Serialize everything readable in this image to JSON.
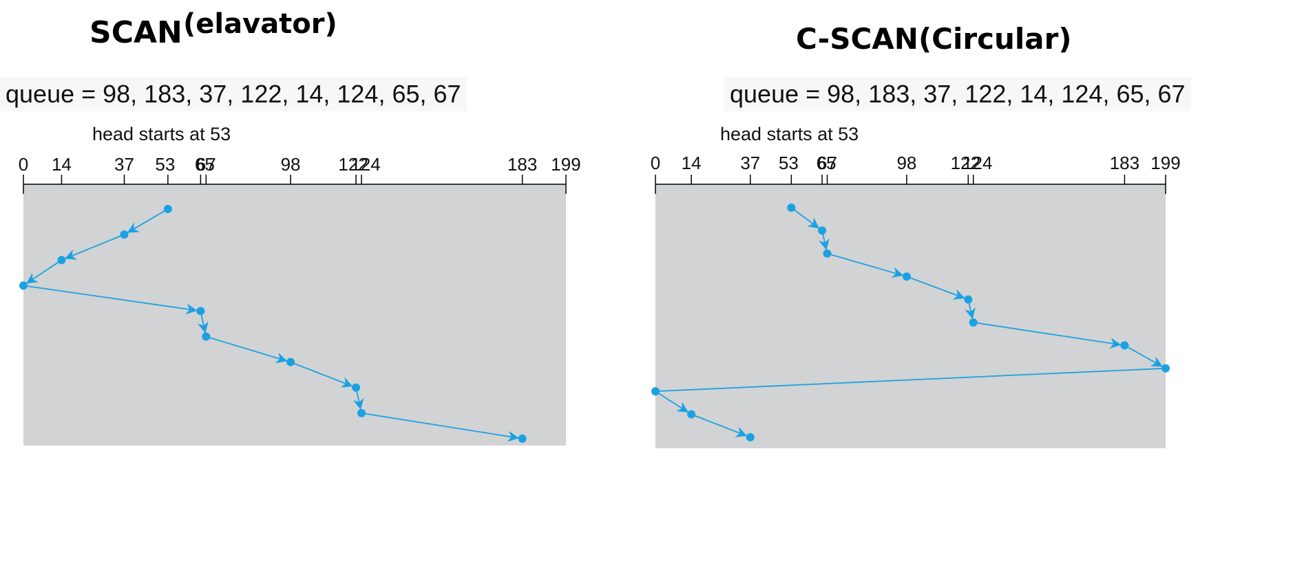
{
  "colors": {
    "plot_background": "#d1d3d4",
    "path": "#1ba1e2",
    "axis": "#000000"
  },
  "scan": {
    "title": "SCAN",
    "title_suffix": "(elavator)",
    "queue_text": "queue = 98, 183, 37, 122, 14, 124, 65, 67",
    "head_text": "head starts at 53",
    "axis_ticks": [
      0,
      14,
      37,
      53,
      65,
      67,
      98,
      122,
      124,
      183,
      199
    ],
    "cylinder_range": [
      0,
      199
    ],
    "sequence": [
      53,
      37,
      14,
      0,
      65,
      67,
      98,
      122,
      124,
      183
    ]
  },
  "cscan": {
    "title": "C-SCAN(Circular)",
    "queue_text": "queue = 98, 183, 37, 122, 14, 124, 65, 67",
    "head_text": "head starts at 53",
    "axis_ticks": [
      0,
      14,
      37,
      53,
      65,
      67,
      98,
      122,
      124,
      183,
      199
    ],
    "cylinder_range": [
      0,
      199
    ],
    "sequence": [
      53,
      65,
      67,
      98,
      122,
      124,
      183,
      199,
      0,
      14,
      37
    ]
  }
}
